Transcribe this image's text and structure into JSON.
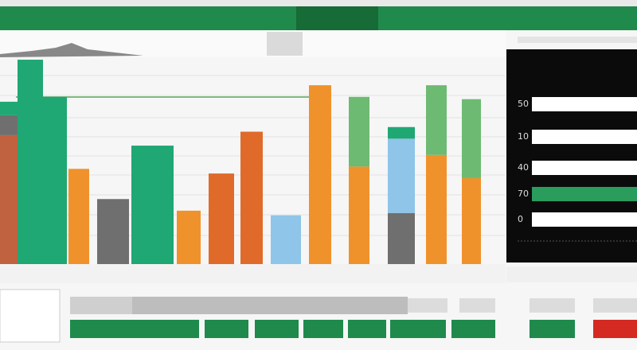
{
  "chart_data": {
    "type": "bar",
    "stacked": true,
    "categories": [
      null,
      null,
      null,
      null,
      null,
      null,
      null,
      null,
      null,
      null,
      null,
      null,
      null,
      null,
      null
    ],
    "ylim": [
      0,
      100
    ],
    "series": [
      {
        "color": "#c0623f",
        "values": [
          55.5,
          null,
          null,
          null,
          null,
          null,
          null,
          null,
          null,
          null,
          null,
          null,
          null,
          null,
          null
        ]
      },
      {
        "color": "#6f6f6f",
        "values": [
          8.6,
          null,
          null,
          null,
          28,
          null,
          null,
          null,
          null,
          null,
          null,
          null,
          22,
          null,
          null
        ]
      },
      {
        "color": "#f0922b",
        "values": [
          null,
          null,
          null,
          41,
          null,
          null,
          23,
          null,
          null,
          null,
          77,
          42,
          null,
          47,
          37
        ]
      },
      {
        "color": "#e06a2a",
        "values": [
          null,
          null,
          null,
          null,
          null,
          null,
          null,
          39,
          57,
          null,
          null,
          null,
          null,
          null,
          null
        ]
      },
      {
        "color": "#8ec5e8",
        "values": [
          null,
          null,
          null,
          null,
          null,
          null,
          null,
          null,
          null,
          21,
          null,
          null,
          32,
          null,
          null
        ]
      },
      {
        "color": "#1fa774",
        "values": [
          5.8,
          88,
          72,
          null,
          null,
          51,
          null,
          null,
          null,
          null,
          null,
          null,
          5,
          null,
          null
        ]
      },
      {
        "color": "#6dba73",
        "values": [
          null,
          null,
          null,
          null,
          null,
          null,
          null,
          null,
          null,
          null,
          null,
          30,
          null,
          30,
          34
        ]
      }
    ]
  },
  "panel": {
    "labels": [
      "50",
      "10",
      "40",
      "70",
      "0"
    ]
  }
}
